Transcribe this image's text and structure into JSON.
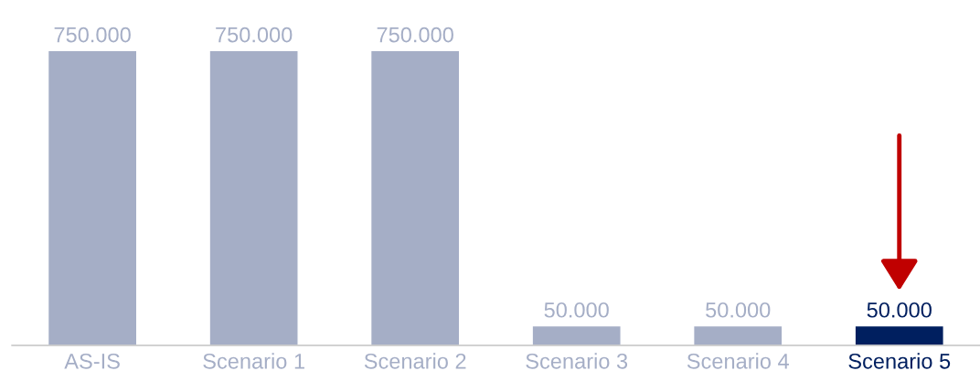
{
  "chart_data": {
    "type": "bar",
    "categories": [
      "AS-IS",
      "Scenario 1",
      "Scenario 2",
      "Scenario 3",
      "Scenario 4",
      "Scenario 5"
    ],
    "values": [
      750000,
      750000,
      750000,
      50000,
      50000,
      50000
    ],
    "value_labels": [
      "750.000",
      "750.000",
      "750.000",
      "50.000",
      "50.000",
      "50.000"
    ],
    "colors": [
      "#a5aec6",
      "#a5aec6",
      "#a5aec6",
      "#a5aec6",
      "#a5aec6",
      "#001f5f"
    ],
    "grid": false,
    "legend": false
  }
}
